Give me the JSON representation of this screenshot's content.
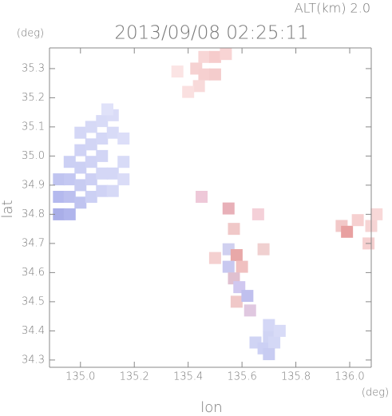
{
  "chart_data": {
    "type": "scatter",
    "title": "2013/09/08 02:25:11",
    "subtitle": "ALT(km) 2.0",
    "x_label": "lon",
    "y_label": "lat",
    "x_unit": "(deg)",
    "y_unit": "(deg)",
    "xlim": [
      134.885,
      136.08
    ],
    "ylim": [
      34.275,
      35.371
    ],
    "xticks": [
      {
        "value": 135,
        "label": "135.0"
      },
      135.2,
      135.4,
      135.6,
      135.8,
      {
        "value": 136,
        "label": "136.0"
      }
    ],
    "yticks": [
      34.3,
      34.4,
      34.5,
      34.6,
      34.7,
      34.8,
      34.9,
      {
        "value": 35,
        "label": "35.0"
      },
      35.1,
      35.2,
      35.3
    ],
    "x": [
      134.92,
      134.92,
      134.92,
      134.96,
      134.96,
      134.96,
      134.96,
      135.0,
      135.0,
      135.0,
      135.0,
      135.0,
      135.04,
      135.04,
      135.04,
      135.04,
      135.04,
      135.08,
      135.08,
      135.08,
      135.08,
      135.08,
      135.12,
      135.12,
      135.12,
      135.12,
      135.16,
      135.16,
      135.16,
      135.1,
      135.43,
      135.46,
      135.5,
      135.54,
      135.46,
      135.5,
      135.44,
      135.4,
      135.36,
      135.55,
      135.57,
      135.55,
      135.58,
      135.55,
      135.6,
      135.57,
      135.59,
      135.58,
      135.62,
      135.63,
      135.5,
      135.66,
      135.68,
      135.45,
      135.65,
      135.68,
      135.7,
      135.72,
      135.7,
      135.7,
      135.74,
      135.97,
      135.99,
      136.03,
      136.08,
      136.07,
      136.1
    ],
    "y": [
      34.8,
      34.86,
      34.92,
      34.8,
      34.86,
      34.92,
      34.98,
      34.84,
      34.9,
      34.96,
      35.02,
      35.08,
      34.86,
      34.92,
      34.98,
      35.04,
      35.1,
      34.88,
      34.94,
      35.0,
      35.06,
      35.12,
      34.88,
      34.94,
      35.08,
      35.14,
      34.92,
      34.98,
      35.06,
      35.16,
      35.3,
      35.34,
      35.34,
      35.35,
      35.28,
      35.28,
      35.24,
      35.22,
      35.29,
      34.82,
      34.75,
      34.68,
      34.66,
      34.62,
      34.62,
      34.58,
      34.55,
      34.5,
      34.52,
      34.47,
      34.65,
      34.8,
      34.68,
      34.86,
      34.36,
      34.34,
      34.38,
      34.36,
      34.32,
      34.42,
      34.4,
      34.76,
      34.74,
      34.78,
      34.76,
      34.7,
      34.8
    ],
    "colors": [
      "#a9aee8",
      "#b4b9ee",
      "#c0c4f0",
      "#b0b5ec",
      "#bcc0ef",
      "#c4c8f2",
      "#ccd0f4",
      "#c0c4f0",
      "#c8ccf2",
      "#ccd0f4",
      "#d0d3f5",
      "#d4d7f6",
      "#ccd0f4",
      "#cdd0f4",
      "#d0d3f5",
      "#d2d5f5",
      "#d6d9f6",
      "#d0d3f5",
      "#d4d7f6",
      "#d2d5f5",
      "#d4d7f6",
      "#d8dbf7",
      "#d6d9f6",
      "#d4d7f6",
      "#d8dbf7",
      "#dadcf7",
      "#dadcf7",
      "#d8dbf7",
      "#dcdef8",
      "#e0e2f9",
      "#f6d2d2",
      "#f8d6d6",
      "#f6cccc",
      "#f8d4d4",
      "#f6d0d0",
      "#f4cccc",
      "#f8dada",
      "#fae0e0",
      "#fbe4e4",
      "#e8b0b8",
      "#f0c8c8",
      "#d0d0f0",
      "#e8a8a8",
      "#c8c8f0",
      "#f0c0c0",
      "#e0c0d0",
      "#d0c8f0",
      "#f0c8c8",
      "#c0c0ee",
      "#e0c8e0",
      "#f4d0d0",
      "#f4d0d8",
      "#f0d0d0",
      "#eec8d8",
      "#d0d4f4",
      "#ccd0f4",
      "#d0d4f4",
      "#d4d8f6",
      "#c8ccf2",
      "#d4d7f6",
      "#d8dbf7",
      "#f2c8c8",
      "#e8a0a0",
      "#f6d0d0",
      "#f6d4d4",
      "#f6d0d0",
      "#f8d8d8"
    ]
  }
}
